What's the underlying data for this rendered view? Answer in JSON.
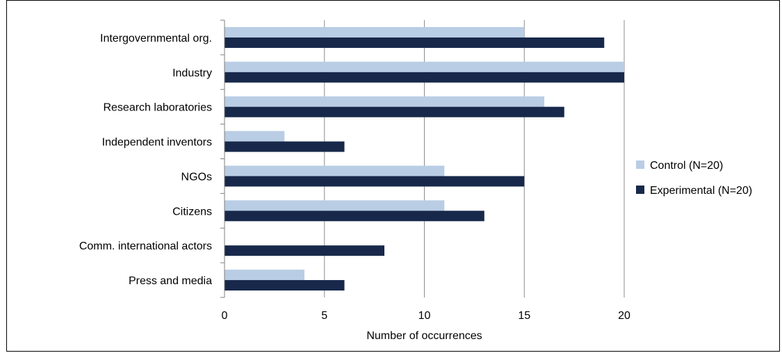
{
  "chart_data": {
    "type": "bar",
    "orientation": "horizontal",
    "title": "",
    "xlabel": "Number of occurrences",
    "ylabel": "",
    "xlim": [
      0,
      20
    ],
    "xticks": [
      "0",
      "5",
      "10",
      "15",
      "20"
    ],
    "grid": "vertical",
    "legend_position": "right",
    "categories": [
      "Intergovernmental org.",
      "Industry",
      "Research laboratories",
      "Independent inventors",
      "NGOs",
      "Citizens",
      "Comm. international actors",
      "Press and media"
    ],
    "series": [
      {
        "name": "Control (N=20)",
        "color": "#b9cde5",
        "values": [
          15,
          20,
          16,
          3,
          11,
          11,
          0,
          4
        ]
      },
      {
        "name": "Experimental (N=20)",
        "color": "#17284a",
        "values": [
          19,
          20,
          17,
          6,
          15,
          13,
          8,
          6
        ]
      }
    ]
  }
}
